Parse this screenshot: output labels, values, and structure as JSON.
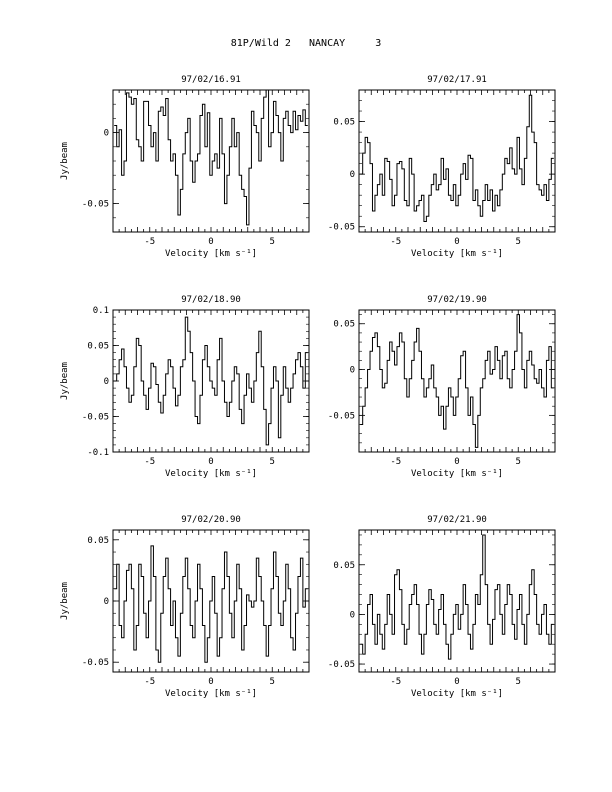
{
  "header": {
    "title": "81P/Wild 2   NANCAY     3"
  },
  "chart_data": [
    {
      "type": "line",
      "title": "97/02/16.91",
      "xlabel": "Velocity [km s⁻¹]",
      "ylabel": "Jy/beam",
      "xlim": [
        -8,
        8
      ],
      "ylim": [
        -0.07,
        0.03
      ],
      "xticks": [
        "-5",
        "0",
        "5"
      ],
      "yticks": [
        {
          "v": 0,
          "label": "0"
        },
        {
          "v": -0.05,
          "label": "-0.05"
        }
      ],
      "x": [
        -7.8,
        -7.6,
        -7.4,
        -7.2,
        -7.0,
        -6.8,
        -6.6,
        -6.4,
        -6.2,
        -6.0,
        -5.8,
        -5.6,
        -5.4,
        -5.2,
        -5.0,
        -4.8,
        -4.6,
        -4.4,
        -4.2,
        -4.0,
        -3.8,
        -3.6,
        -3.4,
        -3.2,
        -3.0,
        -2.8,
        -2.6,
        -2.4,
        -2.2,
        -2.0,
        -1.8,
        -1.6,
        -1.4,
        -1.2,
        -1.0,
        -0.8,
        -0.6,
        -0.4,
        -0.2,
        0.0,
        0.2,
        0.4,
        0.6,
        0.8,
        1.0,
        1.2,
        1.4,
        1.6,
        1.8,
        2.0,
        2.2,
        2.4,
        2.6,
        2.8,
        3.0,
        3.2,
        3.4,
        3.6,
        3.8,
        4.0,
        4.2,
        4.4,
        4.6,
        4.8,
        5.0,
        5.2,
        5.4,
        5.6,
        5.8,
        6.0,
        6.2,
        6.4,
        6.6,
        6.8,
        7.0,
        7.2,
        7.4,
        7.6,
        7.8
      ],
      "y": [
        0.005,
        -0.01,
        0.002,
        -0.03,
        -0.02,
        0.028,
        0.025,
        0.02,
        0.024,
        -0.005,
        -0.01,
        -0.02,
        0.022,
        0.022,
        0.005,
        -0.01,
        0.0,
        -0.02,
        0.015,
        0.018,
        0.012,
        0.024,
        -0.005,
        -0.02,
        -0.015,
        -0.03,
        -0.058,
        -0.04,
        -0.015,
        0.0,
        0.01,
        -0.02,
        -0.035,
        -0.02,
        -0.015,
        0.012,
        0.02,
        -0.01,
        0.014,
        -0.03,
        -0.02,
        -0.015,
        -0.025,
        0.01,
        -0.015,
        -0.05,
        -0.03,
        -0.01,
        0.01,
        -0.01,
        0.0,
        -0.03,
        -0.04,
        -0.045,
        -0.065,
        -0.025,
        0.015,
        0.005,
        0.0,
        -0.02,
        0.01,
        0.025,
        0.03,
        -0.01,
        0.0,
        0.022,
        0.012,
        0.0,
        -0.02,
        0.01,
        0.015,
        0.005,
        0.0,
        0.015,
        0.002,
        0.012,
        0.008,
        0.016,
        0.005
      ]
    },
    {
      "type": "line",
      "title": "97/02/17.91",
      "xlabel": "Velocity [km s⁻¹]",
      "ylabel": "",
      "xlim": [
        -8,
        8
      ],
      "ylim": [
        -0.055,
        0.08
      ],
      "xticks": [
        "-5",
        "0",
        "5"
      ],
      "yticks": [
        {
          "v": 0.05,
          "label": "0.05"
        },
        {
          "v": 0,
          "label": "0"
        },
        {
          "v": -0.05,
          "label": "-0.05"
        }
      ],
      "x": [
        -7.8,
        -7.6,
        -7.4,
        -7.2,
        -7.0,
        -6.8,
        -6.6,
        -6.4,
        -6.2,
        -6.0,
        -5.8,
        -5.6,
        -5.4,
        -5.2,
        -5.0,
        -4.8,
        -4.6,
        -4.4,
        -4.2,
        -4.0,
        -3.8,
        -3.6,
        -3.4,
        -3.2,
        -3.0,
        -2.8,
        -2.6,
        -2.4,
        -2.2,
        -2.0,
        -1.8,
        -1.6,
        -1.4,
        -1.2,
        -1.0,
        -0.8,
        -0.6,
        -0.4,
        -0.2,
        0.0,
        0.2,
        0.4,
        0.6,
        0.8,
        1.0,
        1.2,
        1.4,
        1.6,
        1.8,
        2.0,
        2.2,
        2.4,
        2.6,
        2.8,
        3.0,
        3.2,
        3.4,
        3.6,
        3.8,
        4.0,
        4.2,
        4.4,
        4.6,
        4.8,
        5.0,
        5.2,
        5.4,
        5.6,
        5.8,
        6.0,
        6.2,
        6.4,
        6.6,
        6.8,
        7.0,
        7.2,
        7.4,
        7.6,
        7.8
      ],
      "y": [
        0.0,
        0.02,
        0.035,
        0.03,
        0.01,
        -0.035,
        -0.02,
        -0.01,
        0.0,
        -0.02,
        0.015,
        0.012,
        -0.005,
        -0.03,
        -0.02,
        0.01,
        0.012,
        0.005,
        -0.025,
        -0.03,
        0.015,
        0.0,
        -0.035,
        -0.03,
        -0.025,
        -0.02,
        -0.045,
        -0.04,
        -0.02,
        -0.01,
        0.0,
        -0.015,
        -0.01,
        0.015,
        -0.005,
        0.005,
        -0.02,
        -0.025,
        -0.01,
        -0.03,
        -0.02,
        0.0,
        0.01,
        -0.005,
        0.018,
        0.015,
        -0.025,
        -0.015,
        -0.03,
        -0.04,
        -0.025,
        -0.01,
        -0.025,
        -0.015,
        -0.035,
        -0.02,
        -0.03,
        -0.015,
        0.0,
        0.015,
        0.01,
        0.025,
        0.005,
        0.0,
        0.035,
        0.005,
        -0.01,
        0.015,
        0.045,
        0.075,
        0.04,
        0.03,
        -0.01,
        -0.015,
        -0.02,
        -0.01,
        -0.025,
        -0.005,
        0.015
      ]
    },
    {
      "type": "line",
      "title": "97/02/18.90",
      "xlabel": "Velocity [km s⁻¹]",
      "ylabel": "Jy/beam",
      "xlim": [
        -8,
        8
      ],
      "ylim": [
        -0.1,
        0.1
      ],
      "xticks": [
        "-5",
        "0",
        "5"
      ],
      "yticks": [
        {
          "v": 0.1,
          "label": "0.1"
        },
        {
          "v": 0.05,
          "label": "0.05"
        },
        {
          "v": 0,
          "label": "0"
        },
        {
          "v": -0.05,
          "label": "-0.05"
        },
        {
          "v": -0.1,
          "label": "-0.1"
        }
      ],
      "x": [
        -7.8,
        -7.6,
        -7.4,
        -7.2,
        -7.0,
        -6.8,
        -6.6,
        -6.4,
        -6.2,
        -6.0,
        -5.8,
        -5.6,
        -5.4,
        -5.2,
        -5.0,
        -4.8,
        -4.6,
        -4.4,
        -4.2,
        -4.0,
        -3.8,
        -3.6,
        -3.4,
        -3.2,
        -3.0,
        -2.8,
        -2.6,
        -2.4,
        -2.2,
        -2.0,
        -1.8,
        -1.6,
        -1.4,
        -1.2,
        -1.0,
        -0.8,
        -0.6,
        -0.4,
        -0.2,
        0.0,
        0.2,
        0.4,
        0.6,
        0.8,
        1.0,
        1.2,
        1.4,
        1.6,
        1.8,
        2.0,
        2.2,
        2.4,
        2.6,
        2.8,
        3.0,
        3.2,
        3.4,
        3.6,
        3.8,
        4.0,
        4.2,
        4.4,
        4.6,
        4.8,
        5.0,
        5.2,
        5.4,
        5.6,
        5.8,
        6.0,
        6.2,
        6.4,
        6.6,
        6.8,
        7.0,
        7.2,
        7.4,
        7.6,
        7.8
      ],
      "y": [
        0.0,
        0.01,
        0.03,
        0.045,
        0.02,
        -0.01,
        -0.03,
        -0.02,
        0.02,
        0.06,
        0.05,
        0.0,
        -0.02,
        -0.04,
        -0.01,
        0.025,
        0.02,
        -0.005,
        -0.03,
        -0.045,
        -0.02,
        0.01,
        0.03,
        0.02,
        -0.01,
        -0.035,
        -0.02,
        0.02,
        0.03,
        0.09,
        0.07,
        0.04,
        0.0,
        -0.05,
        -0.06,
        -0.02,
        0.03,
        0.05,
        0.02,
        0.0,
        -0.01,
        -0.02,
        0.03,
        0.06,
        0.0,
        -0.03,
        -0.05,
        -0.03,
        0.0,
        0.02,
        0.01,
        -0.04,
        -0.06,
        -0.02,
        0.01,
        -0.01,
        -0.03,
        0.0,
        0.04,
        0.07,
        0.02,
        -0.04,
        -0.09,
        -0.06,
        -0.01,
        0.02,
        0.0,
        -0.08,
        -0.02,
        0.02,
        -0.01,
        -0.03,
        -0.01,
        0.01,
        0.03,
        0.04,
        0.02,
        -0.01,
        0.04
      ]
    },
    {
      "type": "line",
      "title": "97/02/19.90",
      "xlabel": "Velocity [km s⁻¹]",
      "ylabel": "",
      "xlim": [
        -8,
        8
      ],
      "ylim": [
        -0.09,
        0.065
      ],
      "xticks": [
        "-5",
        "0",
        "5"
      ],
      "yticks": [
        {
          "v": 0.05,
          "label": "0.05"
        },
        {
          "v": 0,
          "label": "0"
        },
        {
          "v": -0.05,
          "label": "-0.05"
        }
      ],
      "x": [
        -7.8,
        -7.6,
        -7.4,
        -7.2,
        -7.0,
        -6.8,
        -6.6,
        -6.4,
        -6.2,
        -6.0,
        -5.8,
        -5.6,
        -5.4,
        -5.2,
        -5.0,
        -4.8,
        -4.6,
        -4.4,
        -4.2,
        -4.0,
        -3.8,
        -3.6,
        -3.4,
        -3.2,
        -3.0,
        -2.8,
        -2.6,
        -2.4,
        -2.2,
        -2.0,
        -1.8,
        -1.6,
        -1.4,
        -1.2,
        -1.0,
        -0.8,
        -0.6,
        -0.4,
        -0.2,
        0.0,
        0.2,
        0.4,
        0.6,
        0.8,
        1.0,
        1.2,
        1.4,
        1.6,
        1.8,
        2.0,
        2.2,
        2.4,
        2.6,
        2.8,
        3.0,
        3.2,
        3.4,
        3.6,
        3.8,
        4.0,
        4.2,
        4.4,
        4.6,
        4.8,
        5.0,
        5.2,
        5.4,
        5.6,
        5.8,
        6.0,
        6.2,
        6.4,
        6.6,
        6.8,
        7.0,
        7.2,
        7.4,
        7.6,
        7.8
      ],
      "y": [
        -0.06,
        -0.04,
        -0.02,
        0.0,
        0.02,
        0.035,
        0.04,
        0.025,
        0.0,
        -0.02,
        -0.015,
        0.01,
        0.03,
        0.02,
        0.005,
        0.025,
        0.04,
        0.03,
        -0.01,
        -0.03,
        -0.01,
        0.01,
        0.03,
        0.045,
        0.02,
        -0.01,
        -0.03,
        -0.02,
        -0.01,
        0.005,
        -0.02,
        -0.03,
        -0.05,
        -0.04,
        -0.065,
        -0.04,
        -0.02,
        -0.03,
        -0.05,
        -0.03,
        -0.01,
        0.015,
        0.02,
        -0.02,
        -0.05,
        -0.03,
        -0.06,
        -0.085,
        -0.05,
        -0.02,
        -0.01,
        0.01,
        0.02,
        -0.005,
        0.0,
        0.025,
        0.01,
        -0.01,
        0.015,
        0.02,
        -0.01,
        -0.02,
        0.0,
        0.02,
        0.06,
        0.04,
        0.0,
        -0.02,
        0.01,
        0.02,
        0.005,
        -0.01,
        -0.015,
        0.0,
        -0.02,
        -0.03,
        0.01,
        0.025,
        -0.02
      ]
    },
    {
      "type": "line",
      "title": "97/02/20.90",
      "xlabel": "Velocity [km s⁻¹]",
      "ylabel": "Jy/beam",
      "xlim": [
        -8,
        8
      ],
      "ylim": [
        -0.058,
        0.058
      ],
      "xticks": [
        "-5",
        "0",
        "5"
      ],
      "yticks": [
        {
          "v": 0.05,
          "label": "0.05"
        },
        {
          "v": 0,
          "label": "0"
        },
        {
          "v": -0.05,
          "label": "-0.05"
        }
      ],
      "x": [
        -7.8,
        -7.6,
        -7.4,
        -7.2,
        -7.0,
        -6.8,
        -6.6,
        -6.4,
        -6.2,
        -6.0,
        -5.8,
        -5.6,
        -5.4,
        -5.2,
        -5.0,
        -4.8,
        -4.6,
        -4.4,
        -4.2,
        -4.0,
        -3.8,
        -3.6,
        -3.4,
        -3.2,
        -3.0,
        -2.8,
        -2.6,
        -2.4,
        -2.2,
        -2.0,
        -1.8,
        -1.6,
        -1.4,
        -1.2,
        -1.0,
        -0.8,
        -0.6,
        -0.4,
        -0.2,
        0.0,
        0.2,
        0.4,
        0.6,
        0.8,
        1.0,
        1.2,
        1.4,
        1.6,
        1.8,
        2.0,
        2.2,
        2.4,
        2.6,
        2.8,
        3.0,
        3.2,
        3.4,
        3.6,
        3.8,
        4.0,
        4.2,
        4.4,
        4.6,
        4.8,
        5.0,
        5.2,
        5.4,
        5.6,
        5.8,
        6.0,
        6.2,
        6.4,
        6.6,
        6.8,
        7.0,
        7.2,
        7.4,
        7.6,
        7.8
      ],
      "y": [
        0.01,
        0.03,
        -0.02,
        -0.03,
        0.0,
        0.025,
        0.03,
        0.01,
        -0.04,
        -0.02,
        0.03,
        0.02,
        -0.01,
        -0.03,
        0.0,
        0.045,
        0.02,
        -0.04,
        -0.05,
        -0.01,
        0.02,
        0.035,
        0.01,
        -0.02,
        0.0,
        -0.03,
        -0.045,
        -0.01,
        0.02,
        0.035,
        0.01,
        -0.02,
        -0.03,
        0.0,
        0.03,
        0.01,
        -0.02,
        -0.05,
        -0.03,
        0.0,
        0.02,
        -0.01,
        -0.045,
        -0.03,
        0.01,
        0.04,
        0.02,
        -0.01,
        -0.03,
        0.0,
        0.03,
        0.01,
        -0.04,
        -0.02,
        0.005,
        0.0,
        -0.005,
        0.0,
        0.035,
        0.02,
        0.0,
        -0.02,
        -0.045,
        -0.02,
        0.01,
        0.04,
        0.02,
        -0.01,
        -0.02,
        0.0,
        0.03,
        0.01,
        -0.03,
        -0.04,
        -0.01,
        0.02,
        0.035,
        -0.005,
        0.01
      ]
    },
    {
      "type": "line",
      "title": "97/02/21.90",
      "xlabel": "Velocity [km s⁻¹]",
      "ylabel": "",
      "xlim": [
        -8,
        8
      ],
      "ylim": [
        -0.058,
        0.085
      ],
      "xticks": [
        "-5",
        "0",
        "5"
      ],
      "yticks": [
        {
          "v": 0.05,
          "label": "0.05"
        },
        {
          "v": 0,
          "label": "0"
        },
        {
          "v": -0.05,
          "label": "-0.05"
        }
      ],
      "x": [
        -7.8,
        -7.6,
        -7.4,
        -7.2,
        -7.0,
        -6.8,
        -6.6,
        -6.4,
        -6.2,
        -6.0,
        -5.8,
        -5.6,
        -5.4,
        -5.2,
        -5.0,
        -4.8,
        -4.6,
        -4.4,
        -4.2,
        -4.0,
        -3.8,
        -3.6,
        -3.4,
        -3.2,
        -3.0,
        -2.8,
        -2.6,
        -2.4,
        -2.2,
        -2.0,
        -1.8,
        -1.6,
        -1.4,
        -1.2,
        -1.0,
        -0.8,
        -0.6,
        -0.4,
        -0.2,
        0.0,
        0.2,
        0.4,
        0.6,
        0.8,
        1.0,
        1.2,
        1.4,
        1.6,
        1.8,
        2.0,
        2.2,
        2.4,
        2.6,
        2.8,
        3.0,
        3.2,
        3.4,
        3.6,
        3.8,
        4.0,
        4.2,
        4.4,
        4.6,
        4.8,
        5.0,
        5.2,
        5.4,
        5.6,
        5.8,
        6.0,
        6.2,
        6.4,
        6.6,
        6.8,
        7.0,
        7.2,
        7.4,
        7.6,
        7.8
      ],
      "y": [
        -0.03,
        -0.04,
        -0.02,
        0.01,
        0.02,
        -0.01,
        -0.03,
        0.0,
        -0.02,
        -0.035,
        -0.01,
        0.02,
        0.0,
        -0.02,
        0.04,
        0.045,
        0.025,
        -0.01,
        -0.03,
        -0.015,
        0.01,
        0.02,
        0.03,
        0.01,
        -0.02,
        -0.04,
        -0.02,
        0.01,
        0.025,
        0.015,
        -0.01,
        -0.02,
        0.005,
        0.02,
        -0.01,
        -0.03,
        -0.045,
        -0.02,
        0.0,
        0.01,
        -0.015,
        0.0,
        0.03,
        0.01,
        -0.02,
        -0.035,
        -0.01,
        0.02,
        0.01,
        0.04,
        0.08,
        0.03,
        -0.01,
        -0.03,
        -0.005,
        0.025,
        0.03,
        0.0,
        -0.02,
        0.01,
        0.03,
        0.02,
        -0.01,
        -0.025,
        0.005,
        0.02,
        -0.01,
        -0.03,
        0.0,
        0.03,
        0.045,
        0.02,
        -0.01,
        -0.02,
        0.0,
        0.01,
        -0.02,
        -0.03,
        -0.01
      ]
    }
  ]
}
